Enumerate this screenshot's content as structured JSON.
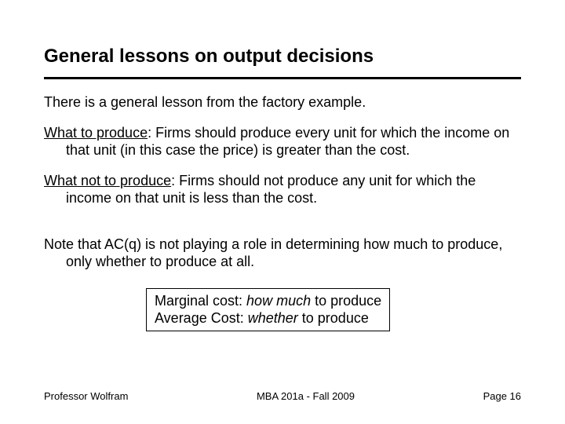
{
  "title": "General lessons on output decisions",
  "intro": "There is a general lesson from the factory example.",
  "p1_label": "What to produce",
  "p1_rest": ": Firms should produce every unit for which the income on that unit (in this case the price) is greater than the cost.",
  "p2_label": "What not to produce",
  "p2_rest": ": Firms should not produce any unit for which the income on that unit is less than the cost.",
  "p3": "Note that AC(q) is not playing a role in determining how much to produce, only whether to produce at all.",
  "box_l1_a": "Marginal cost:  ",
  "box_l1_i": "how much",
  "box_l1_b": " to produce",
  "box_l2_a": "Average Cost:  ",
  "box_l2_i": "whether",
  "box_l2_b": " to produce",
  "footer_left": "Professor Wolfram",
  "footer_center": "MBA 201a - Fall 2009",
  "footer_right": "Page 16"
}
